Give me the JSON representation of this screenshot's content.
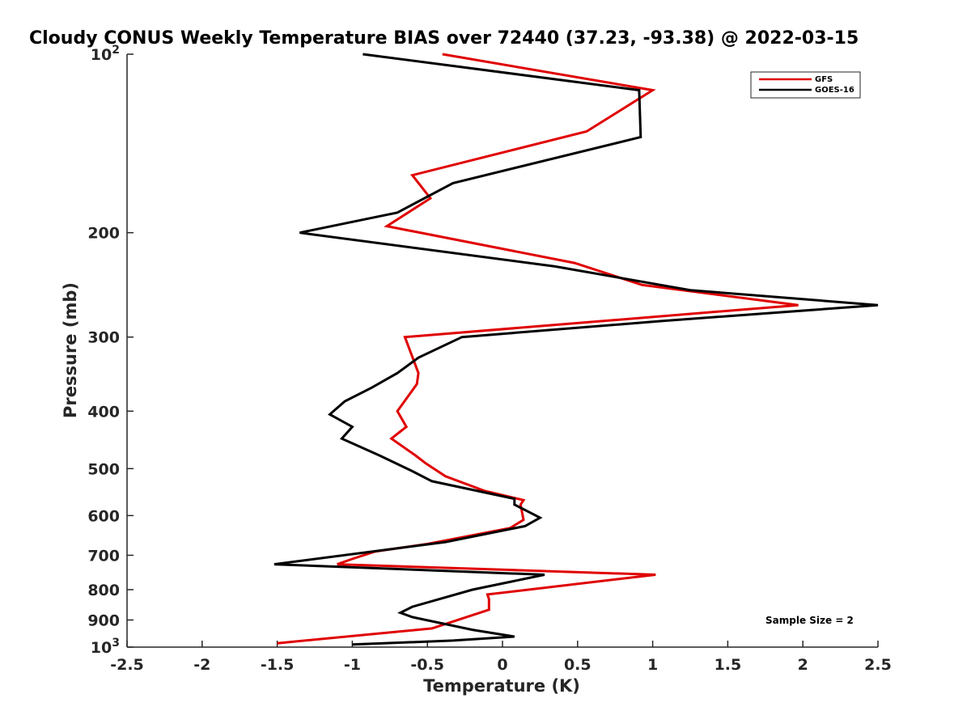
{
  "chart_data": {
    "type": "line",
    "title": "Cloudy CONUS Weekly Temperature BIAS over 72440 (37.23, -93.38) @ 2022-03-15",
    "xlabel": "Temperature (K)",
    "ylabel": "Pressure (mb)",
    "xlim": [
      -2.5,
      2.5
    ],
    "ylim": [
      100,
      1000
    ],
    "y_scale": "log",
    "y_reversed": true,
    "grid": false,
    "legend_position": "top-right",
    "x_ticks": [
      -2.5,
      -2,
      -1.5,
      -1,
      -0.5,
      0,
      0.5,
      1,
      1.5,
      2,
      2.5
    ],
    "x_tick_labels": [
      "-2.5",
      "-2",
      "-1.5",
      "-1",
      "-0.5",
      "0",
      "0.5",
      "1",
      "1.5",
      "2",
      "2.5"
    ],
    "y_ticks": [
      100,
      200,
      300,
      400,
      500,
      600,
      700,
      800,
      900,
      1000
    ],
    "y_tick_labels": [
      {
        "base": "10",
        "exp": "2"
      },
      {
        "base": "200",
        "exp": ""
      },
      {
        "base": "300",
        "exp": ""
      },
      {
        "base": "400",
        "exp": ""
      },
      {
        "base": "500",
        "exp": ""
      },
      {
        "base": "600",
        "exp": ""
      },
      {
        "base": "700",
        "exp": ""
      },
      {
        "base": "800",
        "exp": ""
      },
      {
        "base": "900",
        "exp": ""
      },
      {
        "base": "10",
        "exp": "3"
      }
    ],
    "annotation": "Sample Size = 2",
    "series": [
      {
        "name": "GFS",
        "color": "#e00000",
        "points": [
          [
            -0.4,
            100
          ],
          [
            1.0,
            115
          ],
          [
            0.56,
            135
          ],
          [
            -0.6,
            160
          ],
          [
            -0.48,
            175
          ],
          [
            -0.77,
            195
          ],
          [
            0.48,
            225
          ],
          [
            0.93,
            245
          ],
          [
            1.97,
            265
          ],
          [
            -0.65,
            300
          ],
          [
            -0.56,
            345
          ],
          [
            -0.57,
            360
          ],
          [
            -0.7,
            400
          ],
          [
            -0.64,
            425
          ],
          [
            -0.74,
            445
          ],
          [
            -0.58,
            475
          ],
          [
            -0.51,
            490
          ],
          [
            -0.38,
            515
          ],
          [
            -0.12,
            545
          ],
          [
            0.14,
            565
          ],
          [
            0.12,
            575
          ],
          [
            0.14,
            610
          ],
          [
            0.05,
            630
          ],
          [
            -0.5,
            670
          ],
          [
            -0.85,
            690
          ],
          [
            -1.0,
            710
          ],
          [
            -1.1,
            725
          ],
          [
            1.02,
            755
          ],
          [
            -0.1,
            815
          ],
          [
            -0.09,
            830
          ],
          [
            -0.09,
            865
          ],
          [
            -0.47,
            930
          ],
          [
            -1.5,
            985
          ]
        ]
      },
      {
        "name": "GOES-16",
        "color": "#000000",
        "points": [
          [
            -0.93,
            100
          ],
          [
            0.91,
            115
          ],
          [
            0.92,
            138
          ],
          [
            -0.33,
            165
          ],
          [
            -0.7,
            185
          ],
          [
            -1.35,
            200
          ],
          [
            0.35,
            228
          ],
          [
            1.25,
            250
          ],
          [
            2.5,
            265
          ],
          [
            1.05,
            282
          ],
          [
            -0.27,
            300
          ],
          [
            -0.56,
            325
          ],
          [
            -0.7,
            345
          ],
          [
            -0.87,
            365
          ],
          [
            -1.05,
            385
          ],
          [
            -1.15,
            405
          ],
          [
            -1.0,
            425
          ],
          [
            -1.07,
            445
          ],
          [
            -0.82,
            475
          ],
          [
            -0.6,
            505
          ],
          [
            -0.47,
            525
          ],
          [
            0.08,
            562
          ],
          [
            0.08,
            575
          ],
          [
            0.25,
            605
          ],
          [
            0.15,
            625
          ],
          [
            -0.38,
            665
          ],
          [
            -1.52,
            725
          ],
          [
            0.28,
            755
          ],
          [
            -0.2,
            800
          ],
          [
            -0.6,
            855
          ],
          [
            -0.68,
            875
          ],
          [
            -0.6,
            890
          ],
          [
            -0.2,
            935
          ],
          [
            0.08,
            960
          ],
          [
            -0.33,
            975
          ],
          [
            -1.0,
            990
          ]
        ]
      }
    ]
  }
}
